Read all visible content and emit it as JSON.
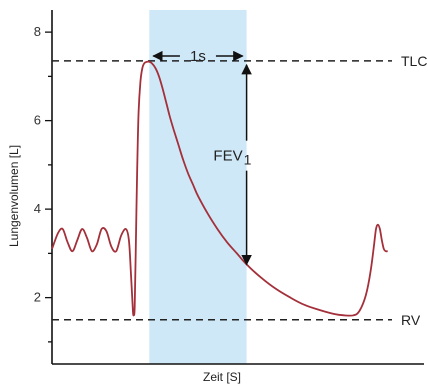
{
  "chart_data": {
    "type": "line",
    "title": "",
    "xlabel": "Zeit [S]",
    "ylabel": "Lungenvolumen [L]",
    "xlim": [
      0,
      7.4
    ],
    "ylim": [
      0.5,
      8.5
    ],
    "y_ticks": [
      2,
      4,
      6,
      8
    ],
    "grid": false,
    "colors": {
      "curve": "#a3303a",
      "highlight": "#cfe8f7",
      "reference": "#222222",
      "axis": "#111111"
    },
    "highlight": {
      "x_start": 2.0,
      "x_end": 4.0,
      "label": "1s"
    },
    "reference_lines": [
      {
        "label": "TLC",
        "y": 7.35
      },
      {
        "label": "RV",
        "y": 1.5
      }
    ],
    "annotations": {
      "fev_main": "FEV",
      "fev_sub": "1",
      "fev_x": 4.0,
      "fev_from": 7.35,
      "fev_to": 2.75
    },
    "series": [
      {
        "x": [
          0.0,
          0.12,
          0.22,
          0.32,
          0.42,
          0.52,
          0.62,
          0.72,
          0.82,
          0.92,
          1.02,
          1.12,
          1.22,
          1.32,
          1.42,
          1.52,
          1.58,
          1.62,
          1.66,
          1.68,
          1.7,
          1.72,
          1.75,
          1.78,
          1.82,
          1.86,
          1.9,
          1.95,
          2.0,
          2.05,
          2.12,
          2.2,
          2.28,
          2.35,
          2.42,
          2.5,
          2.6,
          2.7,
          2.8,
          2.9,
          3.0,
          3.2,
          3.4,
          3.6,
          3.8,
          4.0,
          4.3,
          4.6,
          4.9,
          5.2,
          5.5,
          5.8,
          6.0,
          6.2,
          6.32,
          6.45,
          6.55,
          6.62,
          6.66,
          6.7,
          6.74,
          6.78,
          6.82,
          6.86,
          6.9
        ],
        "y": [
          3.1,
          3.45,
          3.55,
          3.25,
          3.05,
          3.3,
          3.55,
          3.35,
          3.05,
          3.2,
          3.55,
          3.5,
          3.15,
          3.05,
          3.4,
          3.55,
          3.3,
          2.6,
          1.75,
          1.6,
          1.8,
          3.0,
          4.8,
          6.2,
          6.9,
          7.2,
          7.3,
          7.33,
          7.33,
          7.3,
          7.2,
          7.0,
          6.7,
          6.4,
          6.1,
          5.8,
          5.45,
          5.1,
          4.8,
          4.55,
          4.3,
          3.9,
          3.55,
          3.25,
          3.0,
          2.75,
          2.45,
          2.2,
          2.0,
          1.83,
          1.72,
          1.63,
          1.6,
          1.6,
          1.7,
          2.05,
          2.6,
          3.2,
          3.55,
          3.65,
          3.55,
          3.3,
          3.1,
          3.05,
          3.05
        ]
      }
    ]
  }
}
